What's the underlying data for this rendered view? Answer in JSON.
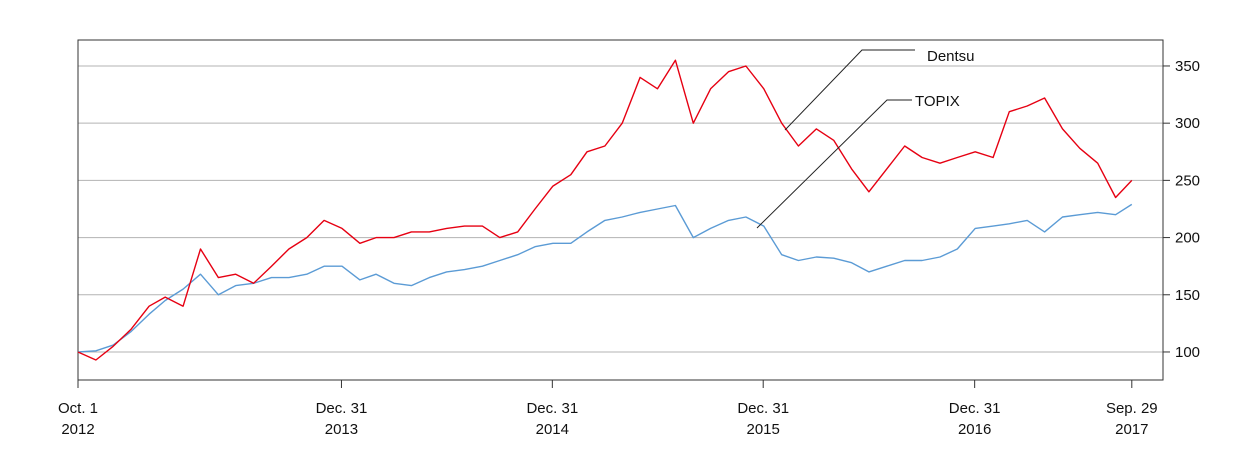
{
  "chart_data": {
    "type": "line",
    "x": [
      "2012-10-01",
      "2012-11-01",
      "2012-12-01",
      "2013-01-01",
      "2013-02-01",
      "2013-03-01",
      "2013-04-01",
      "2013-05-01",
      "2013-06-01",
      "2013-07-01",
      "2013-08-01",
      "2013-09-01",
      "2013-10-01",
      "2013-11-01",
      "2013-12-01",
      "2014-01-01",
      "2014-02-01",
      "2014-03-01",
      "2014-04-01",
      "2014-05-01",
      "2014-06-01",
      "2014-07-01",
      "2014-08-01",
      "2014-09-01",
      "2014-10-01",
      "2014-11-01",
      "2014-12-01",
      "2015-01-01",
      "2015-02-01",
      "2015-03-01",
      "2015-04-01",
      "2015-05-01",
      "2015-06-01",
      "2015-07-01",
      "2015-08-01",
      "2015-09-01",
      "2015-10-01",
      "2015-11-01",
      "2015-12-01",
      "2016-01-01",
      "2016-02-01",
      "2016-03-01",
      "2016-04-01",
      "2016-05-01",
      "2016-06-01",
      "2016-07-01",
      "2016-08-01",
      "2016-09-01",
      "2016-10-01",
      "2016-11-01",
      "2016-12-01",
      "2017-01-01",
      "2017-02-01",
      "2017-03-01",
      "2017-04-01",
      "2017-05-01",
      "2017-06-01",
      "2017-07-01",
      "2017-08-01",
      "2017-09-01",
      "2017-09-29"
    ],
    "series": [
      {
        "name": "Dentsu",
        "color": "#e60012",
        "values": [
          100,
          93,
          105,
          120,
          140,
          148,
          140,
          190,
          165,
          168,
          160,
          175,
          190,
          200,
          215,
          208,
          195,
          200,
          200,
          205,
          205,
          208,
          210,
          210,
          200,
          205,
          225,
          245,
          255,
          275,
          280,
          300,
          340,
          330,
          355,
          300,
          330,
          345,
          350,
          330,
          300,
          280,
          295,
          285,
          260,
          240,
          260,
          280,
          270,
          265,
          270,
          275,
          270,
          310,
          315,
          322,
          295,
          278,
          265,
          235,
          250
        ]
      },
      {
        "name": "TOPIX",
        "color": "#5b9bd5",
        "values": [
          100,
          101,
          106,
          118,
          133,
          145,
          155,
          168,
          150,
          158,
          160,
          165,
          165,
          168,
          175,
          175,
          163,
          168,
          160,
          158,
          165,
          170,
          172,
          175,
          180,
          185,
          192,
          195,
          195,
          205,
          215,
          218,
          222,
          225,
          228,
          200,
          208,
          215,
          218,
          210,
          185,
          180,
          183,
          182,
          178,
          170,
          175,
          180,
          180,
          183,
          190,
          208,
          210,
          212,
          215,
          205,
          218,
          220,
          222,
          220,
          229
        ]
      }
    ],
    "xlim": [
      "2012-10-01",
      "2017-11-22"
    ],
    "xticks": [
      {
        "value": "2012-10-01",
        "label": [
          "Oct. 1",
          "2012"
        ]
      },
      {
        "value": "2013-12-31",
        "label": [
          "Dec. 31",
          "2013"
        ]
      },
      {
        "value": "2014-12-31",
        "label": [
          "Dec. 31",
          "2014"
        ]
      },
      {
        "value": "2015-12-31",
        "label": [
          "Dec. 31",
          "2015"
        ]
      },
      {
        "value": "2016-12-31",
        "label": [
          "Dec. 31",
          "2016"
        ]
      },
      {
        "value": "2017-09-29",
        "label": [
          "Sep. 29",
          "2017"
        ]
      }
    ],
    "ylim": [
      75.5,
      372.7
    ],
    "yticks": [
      100,
      150,
      200,
      250,
      300,
      350
    ],
    "grid": true
  }
}
